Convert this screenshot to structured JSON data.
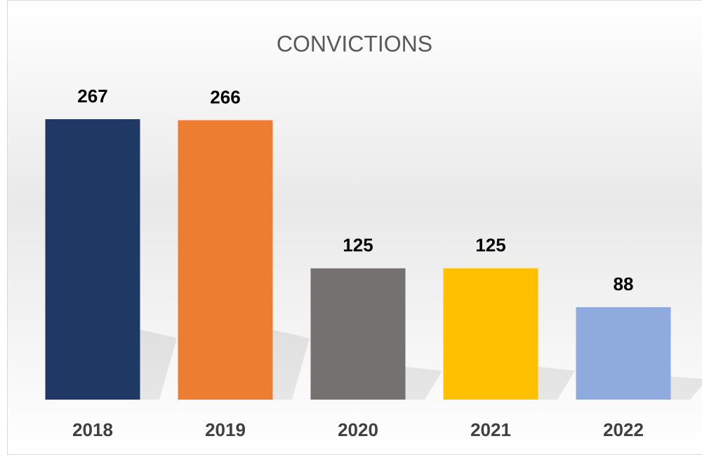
{
  "chart_data": {
    "type": "bar",
    "title": "CONVICTIONS",
    "categories": [
      "2018",
      "2019",
      "2020",
      "2021",
      "2022"
    ],
    "values": [
      267,
      266,
      125,
      125,
      88
    ],
    "colors": [
      "#203864",
      "#ed7d31",
      "#767171",
      "#ffc000",
      "#8faadc"
    ]
  }
}
